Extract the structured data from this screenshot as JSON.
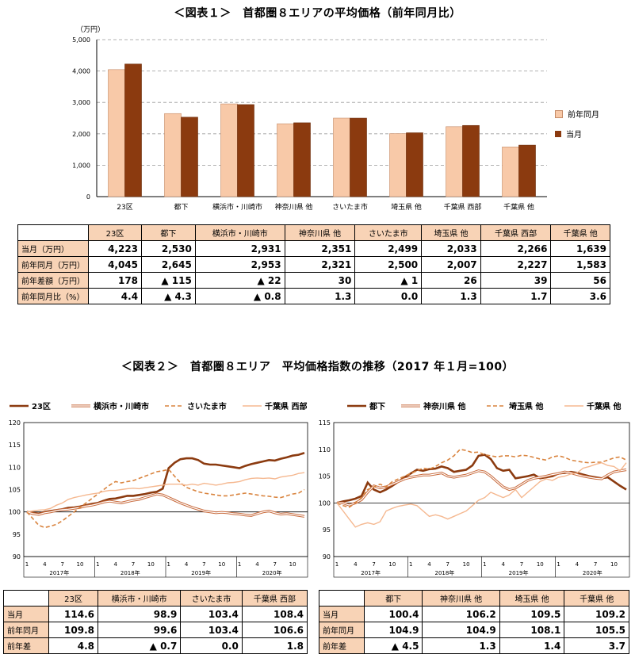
{
  "figure1": {
    "title": "＜図表１＞　首都圏８エリアの平均価格（前年同月比）",
    "chart_data": {
      "type": "bar",
      "unit_label": "（万円）",
      "categories": [
        "23区",
        "都下",
        "横浜市・川崎市",
        "神奈川県 他",
        "さいたま市",
        "埼玉県 他",
        "千葉県 西部",
        "千葉県 他"
      ],
      "series": [
        {
          "name": "前年同月",
          "color": "#f8c9a8",
          "values": [
            4045,
            2645,
            2953,
            2321,
            2500,
            2007,
            2227,
            1583
          ]
        },
        {
          "name": "当月",
          "color": "#8b3a0f",
          "values": [
            4223,
            2530,
            2931,
            2351,
            2499,
            2033,
            2266,
            1639
          ]
        }
      ],
      "ylim": [
        0,
        5000
      ],
      "yticks": [
        "0",
        "1,000",
        "2,000",
        "3,000",
        "4,000",
        "5,000"
      ],
      "legend_position": "right",
      "grid": true
    },
    "table": {
      "headers": [
        "23区",
        "都下",
        "横浜市・川崎市",
        "神奈川県 他",
        "さいたま市",
        "埼玉県 他",
        "千葉県 西部",
        "千葉県 他"
      ],
      "rows": [
        {
          "label": "当月（万円）",
          "cells": [
            "4,223",
            "2,530",
            "2,931",
            "2,351",
            "2,499",
            "2,033",
            "2,266",
            "1,639"
          ]
        },
        {
          "label": "前年同月（万円）",
          "cells": [
            "4,045",
            "2,645",
            "2,953",
            "2,321",
            "2,500",
            "2,007",
            "2,227",
            "1,583"
          ]
        },
        {
          "label": "前年差額（万円）",
          "cells": [
            "178",
            "▲ 115",
            "▲ 22",
            "30",
            "▲ 1",
            "26",
            "39",
            "56"
          ]
        },
        {
          "label": "前年同月比（%）",
          "cells": [
            "4.4",
            "▲ 4.3",
            "▲ 0.8",
            "1.3",
            "0.0",
            "1.3",
            "1.7",
            "3.6"
          ]
        }
      ]
    }
  },
  "figure2": {
    "title": "＜図表２＞　首都圏８エリア　平均価格指数の推移（2017 年１月=100）",
    "charts": [
      {
        "type": "line",
        "ylim": [
          90,
          120
        ],
        "yticks": [
          "90",
          "95",
          "100",
          "105",
          "110",
          "115",
          "120"
        ],
        "month_ticks": [
          "1",
          "4",
          "7",
          "10",
          "1",
          "4",
          "7",
          "10",
          "1",
          "4",
          "7",
          "10",
          "1",
          "4",
          "7",
          "10"
        ],
        "years": [
          "2017年",
          "2018年",
          "2019年",
          "2020年"
        ],
        "series": [
          {
            "name": "23区",
            "style": "thick",
            "color": "#8b3a0f",
            "values": [
              100,
              99.8,
              99.6,
              100.0,
              100.2,
              100.4,
              100.6,
              100.9,
              101.0,
              101.2,
              101.5,
              101.8,
              102.0,
              102.5,
              102.9,
              103.0,
              103.3,
              103.6,
              103.6,
              103.8,
              104.0,
              104.3,
              104.5,
              105.2,
              109.8,
              111.0,
              111.8,
              112.0,
              112.0,
              111.6,
              110.8,
              110.6,
              110.6,
              110.4,
              110.2,
              110.0,
              109.8,
              110.3,
              110.7,
              111.0,
              111.3,
              111.6,
              111.5,
              111.9,
              112.2,
              112.6,
              112.8,
              113.2,
              113.0,
              112.8,
              114.6
            ]
          },
          {
            "name": "横浜市・川崎市",
            "style": "double",
            "color": "#c86a3c",
            "values": [
              100,
              99.6,
              99.4,
              99.8,
              100.0,
              100.3,
              100.5,
              100.6,
              100.8,
              101.0,
              101.3,
              101.5,
              101.8,
              102.2,
              102.4,
              102.2,
              102.0,
              102.3,
              102.6,
              102.8,
              103.2,
              103.6,
              104.0,
              103.8,
              103.2,
              102.6,
              102.0,
              101.5,
              101.0,
              100.6,
              100.2,
              100.0,
              99.8,
              99.9,
              99.8,
              99.6,
              99.5,
              99.3,
              99.2,
              99.6,
              100.0,
              100.2,
              99.8,
              99.5,
              99.6,
              99.4,
              99.2,
              99.0,
              99.0,
              98.9,
              98.9
            ]
          },
          {
            "name": "さいたま市",
            "style": "dashed",
            "color": "#d9843f",
            "values": [
              100,
              98.5,
              97.0,
              96.5,
              96.8,
              97.2,
              98.0,
              99.0,
              100.0,
              101.0,
              102.0,
              103.0,
              104.0,
              105.0,
              106.0,
              106.8,
              106.5,
              106.8,
              107.0,
              107.5,
              108.0,
              108.5,
              109.0,
              109.2,
              109.5,
              108.0,
              106.5,
              105.5,
              105.0,
              104.5,
              104.2,
              104.0,
              103.8,
              103.6,
              103.6,
              103.8,
              104.0,
              104.2,
              104.0,
              103.8,
              103.6,
              103.5,
              103.3,
              103.2,
              103.6,
              104.0,
              104.2,
              105.0,
              104.0,
              103.5,
              103.4
            ]
          },
          {
            "name": "千葉県 西部",
            "style": "light",
            "color": "#f5b890",
            "values": [
              100,
              100.2,
              100.4,
              100.5,
              100.8,
              101.5,
              102.0,
              102.8,
              103.2,
              103.5,
              103.8,
              104.0,
              104.2,
              104.6,
              104.8,
              104.8,
              105.0,
              105.2,
              105.3,
              105.2,
              105.4,
              105.6,
              105.8,
              106.0,
              106.2,
              106.2,
              106.2,
              106.0,
              106.2,
              106.0,
              106.4,
              106.2,
              106.0,
              106.2,
              106.5,
              106.6,
              106.8,
              107.2,
              107.5,
              107.6,
              107.5,
              107.6,
              107.4,
              107.8,
              108.0,
              108.2,
              108.6,
              108.8,
              108.0,
              107.6,
              108.4
            ]
          }
        ]
      },
      {
        "type": "line",
        "ylim": [
          90,
          115
        ],
        "yticks": [
          "90",
          "95",
          "100",
          "105",
          "110",
          "115"
        ],
        "month_ticks": [
          "1",
          "4",
          "7",
          "10",
          "1",
          "4",
          "7",
          "10",
          "1",
          "4",
          "7",
          "10",
          "1",
          "4",
          "7",
          "10"
        ],
        "years": [
          "2017年",
          "2018年",
          "2019年",
          "2020年"
        ],
        "series": [
          {
            "name": "都下",
            "style": "thick",
            "color": "#8b3a0f",
            "values": [
              100,
              100.3,
              100.5,
              100.8,
              101.3,
              103.8,
              102.5,
              102.0,
              102.5,
              103.2,
              104.0,
              104.8,
              105.5,
              106.2,
              106.0,
              106.3,
              106.4,
              106.8,
              106.5,
              105.8,
              106.0,
              106.2,
              107.0,
              108.8,
              109.0,
              108.2,
              106.5,
              106.0,
              106.2,
              104.6,
              104.8,
              105.0,
              105.3,
              104.6,
              104.8,
              105.0,
              105.5,
              105.6,
              105.8,
              105.6,
              105.3,
              105.0,
              104.8,
              104.6,
              104.8,
              104.0,
              103.2,
              102.5,
              102.0,
              101.5,
              100.4
            ]
          },
          {
            "name": "神奈川県 他",
            "style": "double",
            "color": "#c86a3c",
            "values": [
              100,
              100.0,
              99.6,
              100.0,
              100.6,
              102.0,
              103.2,
              102.8,
              103.0,
              103.5,
              104.0,
              104.5,
              104.8,
              105.0,
              105.2,
              105.2,
              105.4,
              105.6,
              105.0,
              104.8,
              105.0,
              105.2,
              105.6,
              106.0,
              105.8,
              105.0,
              104.0,
              103.0,
              102.5,
              102.8,
              103.5,
              104.2,
              104.6,
              104.8,
              105.0,
              105.3,
              105.5,
              105.8,
              105.6,
              105.3,
              105.0,
              104.8,
              104.6,
              104.5,
              105.2,
              105.8,
              106.0,
              106.2,
              105.5,
              104.8,
              106.2
            ]
          },
          {
            "name": "埼玉県 他",
            "style": "dashed",
            "color": "#d9843f",
            "values": [
              100,
              99.5,
              99.2,
              100.0,
              101.0,
              102.5,
              103.0,
              103.5,
              103.0,
              104.0,
              104.5,
              105.0,
              105.5,
              106.0,
              106.5,
              106.3,
              106.8,
              107.5,
              108.0,
              108.8,
              110.0,
              109.8,
              109.4,
              109.5,
              109.0,
              108.8,
              108.6,
              108.8,
              108.8,
              108.6,
              108.9,
              108.8,
              108.5,
              108.2,
              108.0,
              108.6,
              108.8,
              108.5,
              108.0,
              107.8,
              107.6,
              107.5,
              107.6,
              107.6,
              108.0,
              108.4,
              108.6,
              108.0,
              109.0,
              109.5,
              109.5
            ]
          },
          {
            "name": "千葉県 他",
            "style": "light",
            "color": "#f5b890",
            "values": [
              100,
              98.5,
              97.0,
              95.5,
              96.0,
              96.3,
              96.0,
              96.5,
              98.5,
              99.0,
              99.4,
              99.6,
              99.8,
              99.5,
              98.5,
              97.5,
              97.8,
              97.5,
              97.0,
              97.5,
              98.0,
              98.5,
              99.5,
              100.5,
              101.0,
              102.0,
              101.5,
              101.0,
              101.5,
              102.5,
              101.0,
              102.0,
              103.0,
              104.0,
              104.5,
              104.2,
              104.8,
              105.0,
              105.4,
              105.6,
              106.5,
              106.8,
              107.2,
              107.5,
              107.0,
              106.8,
              106.0,
              107.5,
              108.5,
              108.0,
              109.2
            ]
          }
        ]
      }
    ],
    "table_left": {
      "headers": [
        "23区",
        "横浜市・川崎市",
        "さいたま市",
        "千葉県 西部"
      ],
      "rows": [
        {
          "label": "当月",
          "cells": [
            "114.6",
            "98.9",
            "103.4",
            "108.4"
          ]
        },
        {
          "label": "前年同月",
          "cells": [
            "109.8",
            "99.6",
            "103.4",
            "106.6"
          ]
        },
        {
          "label": "前年差",
          "cells": [
            "4.8",
            "▲ 0.7",
            "0.0",
            "1.8"
          ]
        }
      ]
    },
    "table_right": {
      "headers": [
        "都下",
        "神奈川県 他",
        "埼玉県 他",
        "千葉県 他"
      ],
      "rows": [
        {
          "label": "当月",
          "cells": [
            "100.4",
            "106.2",
            "109.5",
            "109.2"
          ]
        },
        {
          "label": "前年同月",
          "cells": [
            "104.9",
            "104.9",
            "108.1",
            "105.5"
          ]
        },
        {
          "label": "前年差",
          "cells": [
            "▲ 4.5",
            "1.3",
            "1.4",
            "3.7"
          ]
        }
      ]
    }
  }
}
